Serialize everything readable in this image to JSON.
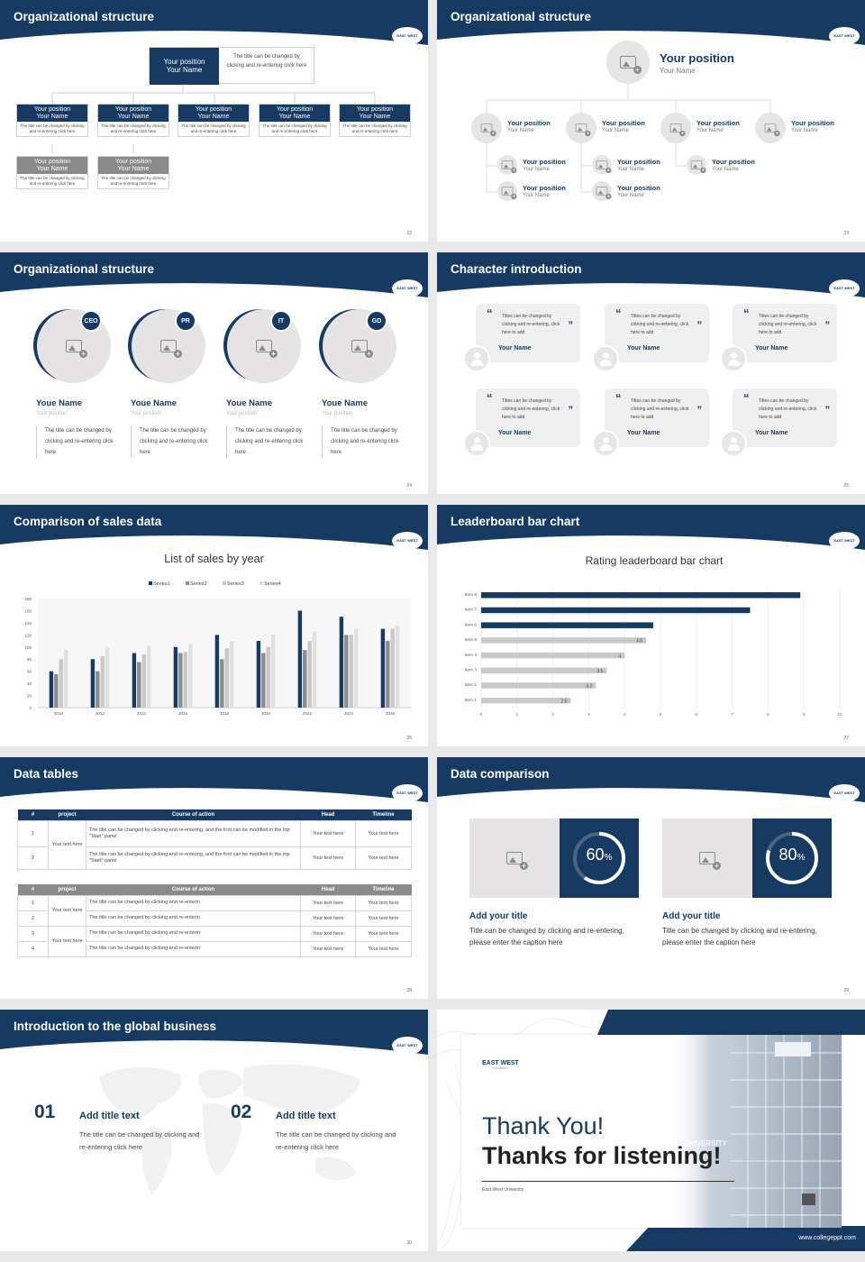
{
  "s1": {
    "title": "Organizational structure",
    "page": "22",
    "top": {
      "pos": "Your position",
      "name": "Your Name",
      "desc": "The title can be changed by clicking and re-entering click here"
    },
    "row1": [
      {
        "pos": "Your position",
        "name": "Your Name",
        "desc": "The title can be changed by clicking and re-entering click here"
      },
      {
        "pos": "Your position",
        "name": "Your Name",
        "desc": "The title can be changed by clicking and re-entering click here"
      },
      {
        "pos": "Your position",
        "name": "Your Name",
        "desc": "The title can be changed by clicking and re-entering click here"
      },
      {
        "pos": "Your position",
        "name": "Your Name",
        "desc": "The title can be changed by clicking and re-entering click here"
      },
      {
        "pos": "Your position",
        "name": "Your Name",
        "desc": "The title can be changed by clicking and re-entering click here"
      }
    ],
    "row2": [
      {
        "pos": "Your position",
        "name": "Your Name",
        "desc": "The title can be changed by clicking and re-entering click here"
      },
      {
        "pos": "Your position",
        "name": "Your Name",
        "desc": "The title can be changed by clicking and re-entering click here"
      }
    ]
  },
  "s2": {
    "title": "Organizational structure",
    "page": "23",
    "top": {
      "pos": "Your position",
      "name": "Your Name"
    },
    "items": [
      {
        "pos": "Your position",
        "name": "Your Name"
      },
      {
        "pos": "Your position",
        "name": "Your Name"
      },
      {
        "pos": "Your position",
        "name": "Your Name"
      },
      {
        "pos": "Your position",
        "name": "Your Name"
      },
      {
        "pos": "Your position",
        "name": "Your Name"
      },
      {
        "pos": "Your position",
        "name": "Your Name"
      },
      {
        "pos": "Your position",
        "name": "Your Name"
      },
      {
        "pos": "Your position",
        "name": "Your Name"
      },
      {
        "pos": "Your position",
        "name": "Your Name"
      }
    ]
  },
  "s3": {
    "title": "Organizational structure",
    "page": "24",
    "people": [
      {
        "badge": "CEO",
        "name": "Youe Name",
        "pos": "Your position",
        "desc": "The title can be changed by clicking and re-entering click here"
      },
      {
        "badge": "PR",
        "name": "Youe Name",
        "pos": "Your position",
        "desc": "The title can be changed by clicking and re-entering click here"
      },
      {
        "badge": "IT",
        "name": "Youe Name",
        "pos": "Your position",
        "desc": "The title can be changed by clicking and re-entering click here"
      },
      {
        "badge": "GD",
        "name": "Youe Name",
        "pos": "Your position",
        "desc": "The title can be changed by clicking and re-entering click here"
      }
    ]
  },
  "s4": {
    "title": "Character introduction",
    "page": "25",
    "quote": "Titles can be changed by clicking and re-entering, click here to add",
    "name": "Your Name"
  },
  "s5": {
    "title": "Comparison of sales data",
    "page": "26"
  },
  "s6": {
    "title": "Leaderboard bar chart",
    "page": "27"
  },
  "s7": {
    "title": "Data tables",
    "page": "28",
    "headers": [
      "#",
      "project",
      "Course of action",
      "Head",
      "Timeline"
    ],
    "t1": {
      "group": "Your text here",
      "rows": [
        {
          "n": "1",
          "c": "The title can be changed by clicking and re-entering, and the font can be modified in the top \"Start\" panel",
          "h": "Your text here",
          "t": "Your text here"
        },
        {
          "n": "2",
          "c": "The title can be changed by clicking and re-entering, and the font can be modified in the top \"Start\" panel",
          "h": "Your text here",
          "t": "Your text here"
        }
      ]
    },
    "t2": {
      "group1": "Your text here",
      "group2": "Your text here",
      "rows": [
        {
          "n": "1",
          "c": "The title can be changed by clicking and re-enterin",
          "h": "Your text here",
          "t": "Your text here"
        },
        {
          "n": "2",
          "c": "The title can be changed by clicking and re-enterin",
          "h": "Your text here",
          "t": "Your text here"
        },
        {
          "n": "3",
          "c": "The title can be changed by clicking and re-enterin",
          "h": "Your text here",
          "t": "Your text here"
        },
        {
          "n": "4",
          "c": "The title can be changed by clicking and re-enterin",
          "h": "Your text here",
          "t": "Your text here"
        }
      ]
    }
  },
  "s8": {
    "title": "Data comparison",
    "page": "29",
    "items": [
      {
        "value": 60,
        "label": "60",
        "unit": "%",
        "title": "Add your title",
        "desc": "Title can be changed by clicking and re-entering, please enter the caption here"
      },
      {
        "value": 80,
        "label": "80",
        "unit": "%",
        "title": "Add your title",
        "desc": "Title can be changed by clicking and re-entering, please enter the caption here"
      }
    ]
  },
  "s9": {
    "title": "Introduction to the global business",
    "page": "30",
    "items": [
      {
        "num": "01",
        "title": "Add title text",
        "desc": "The title can be changed by clicking and re-entering click here"
      },
      {
        "num": "02",
        "title": "Add title text",
        "desc": "The title can be changed by clicking and re-entering click here"
      }
    ]
  },
  "s10": {
    "logo": "EAST WEST",
    "logo_sub": "UNIVERSITY",
    "thank": "Thank You!",
    "thanks": "Thanks for listening!",
    "uni": "East-West University",
    "building": "UNIVERSITY",
    "url": "www.collegeppt.com"
  },
  "logo": "EAST WEST",
  "chart_data": [
    {
      "type": "bar",
      "title": "List of sales by year",
      "categories": [
        "2010",
        "2012",
        "2014",
        "2016",
        "2018",
        "2020",
        "2022",
        "2024",
        "2026"
      ],
      "ylim": [
        0,
        180
      ],
      "yticks": [
        0,
        20,
        40,
        60,
        80,
        100,
        120,
        140,
        160,
        180
      ],
      "series": [
        {
          "name": "Series1",
          "color": "#163a62",
          "values": [
            60,
            80,
            90,
            100,
            120,
            110,
            160,
            150,
            130
          ]
        },
        {
          "name": "Series2",
          "color": "#8c8c8c",
          "values": [
            55,
            60,
            75,
            90,
            80,
            90,
            95,
            120,
            110
          ]
        },
        {
          "name": "Series3",
          "color": "#c8c8c8",
          "values": [
            80,
            85,
            88,
            92,
            98,
            100,
            110,
            120,
            130
          ]
        },
        {
          "name": "Series4",
          "color": "#e0e0e0",
          "values": [
            95,
            100,
            102,
            105,
            110,
            120,
            125,
            130,
            135
          ]
        }
      ]
    },
    {
      "type": "bar",
      "orientation": "horizontal",
      "title": "Rating leaderboard bar chart",
      "categories": [
        "Item 8",
        "Item 7",
        "Item 6",
        "Item 5",
        "Item 4",
        "Item 3",
        "Item 2",
        "Item 1"
      ],
      "values": [
        8.9,
        7.5,
        4.8,
        4.6,
        4,
        3.5,
        3.2,
        2.5
      ],
      "labeled": [
        false,
        false,
        false,
        true,
        true,
        true,
        true,
        true
      ],
      "xlim": [
        0,
        10
      ],
      "xticks": [
        0,
        1,
        2,
        3,
        4,
        5,
        6,
        7,
        8,
        9,
        10
      ]
    }
  ]
}
